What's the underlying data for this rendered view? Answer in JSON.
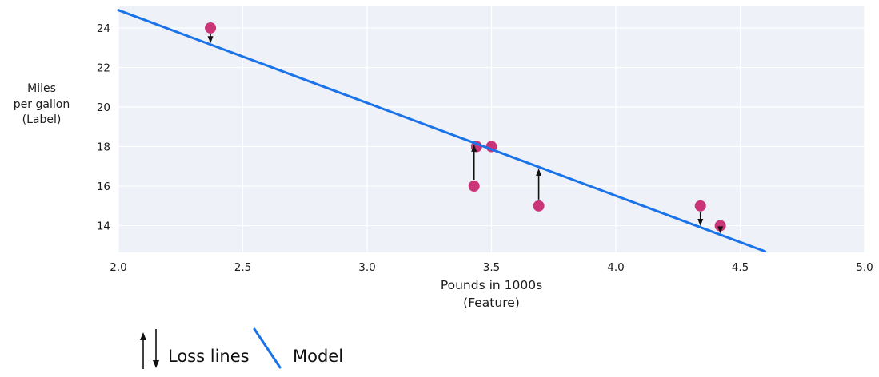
{
  "colors": {
    "plot_bg": "#eef1f7",
    "grid": "#ffffff",
    "model_blue": "#1a73e8",
    "point_pink": "#cb3477",
    "arrow_black": "#111111",
    "text": "#1c1c1c"
  },
  "chart_data": {
    "type": "scatter",
    "title": "",
    "xlabel_lines": [
      "Pounds in 1000s",
      "(Feature)"
    ],
    "ylabel_lines": [
      "Miles",
      "per gallon",
      "(Label)"
    ],
    "x_ticks": [
      "2.0",
      "2.5",
      "3.0",
      "3.5",
      "4.0",
      "4.5",
      "5.0"
    ],
    "x_tick_values": [
      2.0,
      2.5,
      3.0,
      3.5,
      4.0,
      4.5,
      5.0
    ],
    "y_ticks": [
      "14",
      "16",
      "18",
      "20",
      "22",
      "24"
    ],
    "y_tick_values": [
      14,
      16,
      18,
      20,
      22,
      24
    ],
    "xlim": [
      2.0,
      5.0
    ],
    "ylim": [
      12.65,
      25.09
    ],
    "grid": true,
    "legend_position": "bottom-left",
    "points": [
      {
        "x": 2.37,
        "y": 24,
        "loss_arrow": "down"
      },
      {
        "x": 3.44,
        "y": 18,
        "loss_arrow": "none"
      },
      {
        "x": 3.5,
        "y": 18,
        "loss_arrow": "none"
      },
      {
        "x": 3.43,
        "y": 16,
        "loss_arrow": "up"
      },
      {
        "x": 3.69,
        "y": 15,
        "loss_arrow": "up"
      },
      {
        "x": 4.34,
        "y": 15,
        "loss_arrow": "down"
      },
      {
        "x": 4.42,
        "y": 14,
        "loss_arrow": "down"
      }
    ],
    "model_line": {
      "x1": 2.0,
      "y1": 24.9,
      "x2": 4.6,
      "y2": 12.7
    },
    "legend": {
      "loss_label": "Loss lines",
      "model_label": "Model"
    }
  }
}
